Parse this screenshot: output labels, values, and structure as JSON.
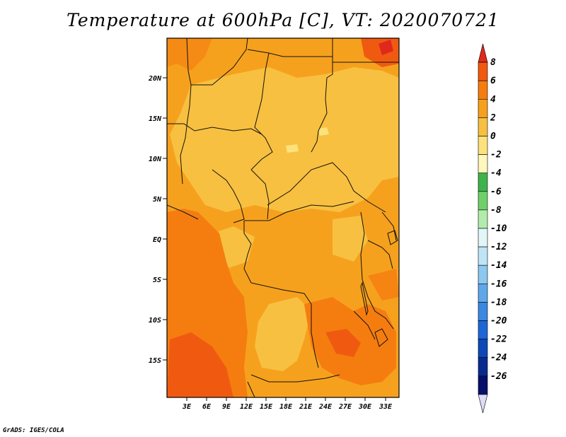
{
  "title": "Temperature at 600hPa [C], VT: 2020070721",
  "credit": "GrADS: IGES/COLA",
  "map": {
    "lat_ticks": [
      "20N",
      "15N",
      "10N",
      "5N",
      "EQ",
      "5S",
      "10S",
      "15S"
    ],
    "lon_ticks": [
      "3E",
      "6E",
      "9E",
      "12E",
      "15E",
      "18E",
      "21E",
      "24E",
      "27E",
      "30E",
      "33E"
    ]
  },
  "colorbar": {
    "labels": [
      "8",
      "6",
      "4",
      "2",
      "0",
      "-2",
      "-4",
      "-6",
      "-8",
      "-10",
      "-12",
      "-14",
      "-16",
      "-18",
      "-20",
      "-22",
      "-24",
      "-26"
    ],
    "colors": [
      "#e0281c",
      "#f05a10",
      "#f57d10",
      "#f6a11d",
      "#f8c040",
      "#fbe27c",
      "#fff7bb",
      "#3cb44b",
      "#6fd06a",
      "#b2ecac",
      "#e3f6f7",
      "#bfe5f5",
      "#8cc8f0",
      "#5ea8ea",
      "#3a88e0",
      "#1e66d6",
      "#0d48b8",
      "#0a2b8e",
      "#06106a",
      "#dcdcf8"
    ]
  },
  "palette": {
    "warm_2_4": "#f6a11d",
    "warm_0_2": "#f8c040",
    "warm_4_6": "#f57d10",
    "warm_6_8": "#f05a10",
    "warm_8": "#e0281c",
    "cool_0_-2": "#fbe27c"
  }
}
